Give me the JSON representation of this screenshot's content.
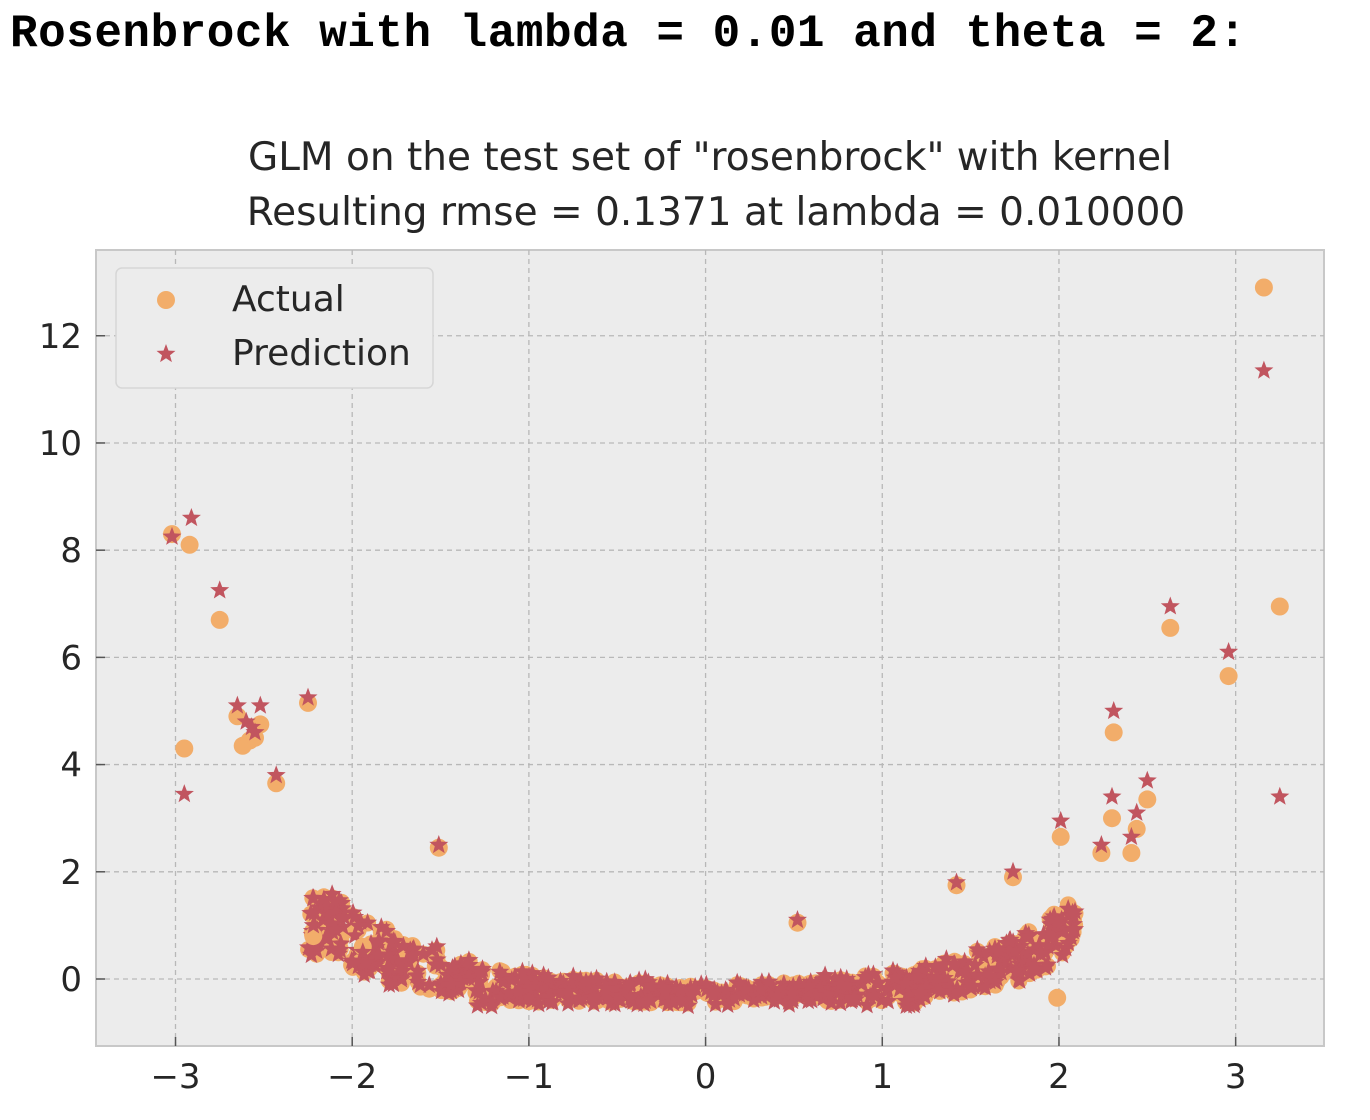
{
  "heading": "Rosenbrock with lambda = 0.01 and theta = 2:",
  "colors": {
    "actual": "#f2ad6a",
    "prediction": "#c1555f",
    "plot_bg": "#ececec",
    "frame": "#c8c8c8"
  },
  "chart_data": {
    "type": "scatter",
    "title": "GLM on the test set of \"rosenbrock\" with kernel",
    "subtitle": "Resulting rmse = 0.1371 at lambda = 0.010000",
    "xlabel": "",
    "ylabel": "",
    "xlim": [
      -3.45,
      3.5
    ],
    "ylim": [
      -1.25,
      13.6
    ],
    "xticks": [
      -3,
      -2,
      -1,
      0,
      1,
      2,
      3
    ],
    "xtick_labels": [
      "−3",
      "−2",
      "−1",
      "0",
      "1",
      "2",
      "3"
    ],
    "yticks": [
      0,
      2,
      4,
      6,
      8,
      10,
      12
    ],
    "ytick_labels": [
      "0",
      "2",
      "4",
      "6",
      "8",
      "10",
      "12"
    ],
    "grid": true,
    "legend_position": "top-left",
    "series": [
      {
        "name": "Actual",
        "marker": "circle",
        "x": [
          -3.02,
          -2.92,
          -2.95,
          -2.75,
          -2.65,
          -2.62,
          -2.58,
          -2.55,
          -2.52,
          -2.43,
          -2.25,
          3.16,
          3.25,
          2.63,
          2.96,
          2.31,
          2.5,
          2.44,
          2.41,
          1.99,
          -2.22,
          -1.94,
          -1.51,
          0.52,
          1.42,
          1.74,
          2.24,
          2.3,
          2.01
        ],
        "y": [
          8.3,
          8.1,
          4.3,
          6.7,
          4.9,
          4.35,
          4.45,
          4.5,
          4.75,
          3.65,
          5.15,
          12.9,
          6.95,
          6.55,
          5.65,
          4.6,
          3.35,
          2.8,
          2.35,
          -0.35,
          0.8,
          0.6,
          2.45,
          1.05,
          1.75,
          1.9,
          2.35,
          3.0,
          2.65
        ]
      },
      {
        "name": "Prediction",
        "marker": "star",
        "x": [
          -3.02,
          -2.91,
          -2.95,
          -2.75,
          -2.65,
          -2.6,
          -2.57,
          -2.55,
          -2.52,
          -2.43,
          -2.25,
          3.16,
          3.25,
          2.63,
          2.96,
          2.31,
          2.5,
          2.44,
          2.41,
          1.99,
          -2.22,
          -1.94,
          -1.51,
          0.52,
          1.42,
          1.74,
          2.24,
          2.3,
          2.01
        ],
        "y": [
          8.25,
          8.6,
          3.45,
          7.25,
          5.1,
          4.8,
          4.7,
          4.6,
          5.1,
          3.8,
          5.25,
          11.35,
          3.4,
          6.95,
          6.1,
          5.0,
          3.7,
          3.1,
          2.65,
          1.05,
          1.0,
          0.5,
          2.5,
          1.1,
          1.8,
          2.0,
          2.5,
          3.4,
          2.95
        ]
      }
    ],
    "bulk_cloud_summary": "dense U-shaped band near the bottom; points reproduced procedurally along y = x^2 pattern"
  }
}
